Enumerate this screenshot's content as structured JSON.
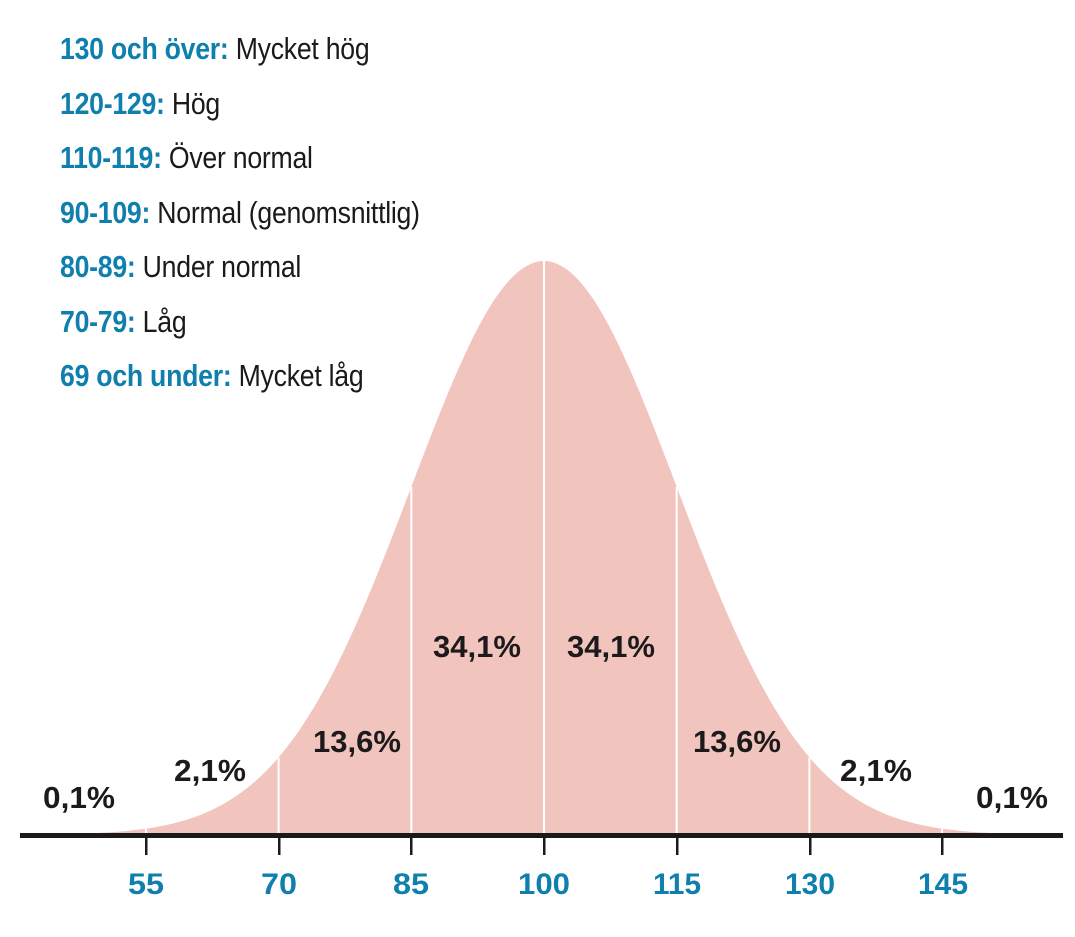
{
  "colors": {
    "curve_fill": "#f2c4be",
    "accent_blue": "#0f7fae",
    "axis": "#1a1a1a",
    "label_dark": "#1c1a1a"
  },
  "legend": [
    {
      "range": "130 och över:",
      "label": "Mycket hög"
    },
    {
      "range": "120-129:",
      "label": "Hög"
    },
    {
      "range": "110-119:",
      "label": "Över normal"
    },
    {
      "range": "90-109:",
      "label": "Normal (genomsnittlig)"
    },
    {
      "range": "80-89:",
      "label": "Under normal"
    },
    {
      "range": "70-79:",
      "label": "Låg"
    },
    {
      "range": "69 och under:",
      "label": "Mycket låg"
    }
  ],
  "axis": {
    "ticks": [
      "55",
      "70",
      "85",
      "100",
      "115",
      "130",
      "145"
    ]
  },
  "segments": {
    "far_left": "0,1%",
    "left_2sd": "2,1%",
    "left_1sd": "13,6%",
    "left_center": "34,1%",
    "right_center": "34,1%",
    "right_1sd": "13,6%",
    "right_2sd": "2,1%",
    "far_right": "0,1%"
  },
  "chart_data": {
    "type": "area",
    "title": "",
    "xlabel": "",
    "ylabel": "",
    "description": "Normal distribution of IQ scores (mean 100, SD 15) with percentage of population per standard-deviation band",
    "x_ticks": [
      55,
      70,
      85,
      100,
      115,
      130,
      145
    ],
    "mean": 100,
    "sd": 15,
    "bands": [
      {
        "range": "< 55",
        "percent": 0.1
      },
      {
        "range": "55-70",
        "percent": 2.1
      },
      {
        "range": "70-85",
        "percent": 13.6
      },
      {
        "range": "85-100",
        "percent": 34.1
      },
      {
        "range": "100-115",
        "percent": 34.1
      },
      {
        "range": "115-130",
        "percent": 13.6
      },
      {
        "range": "130-145",
        "percent": 2.1
      },
      {
        "range": "> 145",
        "percent": 0.1
      }
    ],
    "legend": [
      {
        "range": "130 och över",
        "label": "Mycket hög"
      },
      {
        "range": "120-129",
        "label": "Hög"
      },
      {
        "range": "110-119",
        "label": "Över normal"
      },
      {
        "range": "90-109",
        "label": "Normal (genomsnittlig)"
      },
      {
        "range": "80-89",
        "label": "Under normal"
      },
      {
        "range": "70-79",
        "label": "Låg"
      },
      {
        "range": "69 och under",
        "label": "Mycket låg"
      }
    ],
    "grid": false,
    "legend_position": "top-left"
  }
}
